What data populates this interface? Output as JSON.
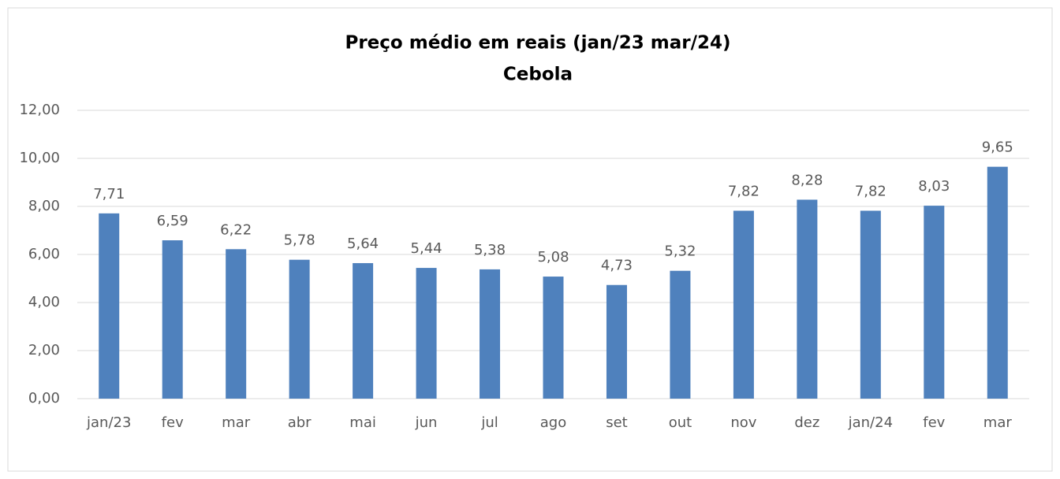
{
  "chart_data": {
    "type": "bar",
    "title": "Preço médio em reais (jan/23 mar/24)",
    "subtitle": "Cebola",
    "categories": [
      "jan/23",
      "fev",
      "mar",
      "abr",
      "mai",
      "jun",
      "jul",
      "ago",
      "set",
      "out",
      "nov",
      "dez",
      "jan/24",
      "fev",
      "mar"
    ],
    "values": [
      7.71,
      6.59,
      6.22,
      5.78,
      5.64,
      5.44,
      5.38,
      5.08,
      4.73,
      5.32,
      7.82,
      8.28,
      7.82,
      8.03,
      9.65
    ],
    "value_labels": [
      "7,71",
      "6,59",
      "6,22",
      "5,78",
      "5,64",
      "5,44",
      "5,38",
      "5,08",
      "4,73",
      "5,32",
      "7,82",
      "8,28",
      "7,82",
      "8,03",
      "9,65"
    ],
    "color": "#4f81bd",
    "ylim": [
      0,
      12
    ],
    "yticks": [
      {
        "value": 0,
        "label": "0,00"
      },
      {
        "value": 2,
        "label": "2,00"
      },
      {
        "value": 4,
        "label": "4,00"
      },
      {
        "value": 6,
        "label": "6,00"
      },
      {
        "value": 8,
        "label": "8,00"
      },
      {
        "value": 10,
        "label": "10,00"
      },
      {
        "value": 12,
        "label": "12,00"
      }
    ],
    "grid": true
  }
}
